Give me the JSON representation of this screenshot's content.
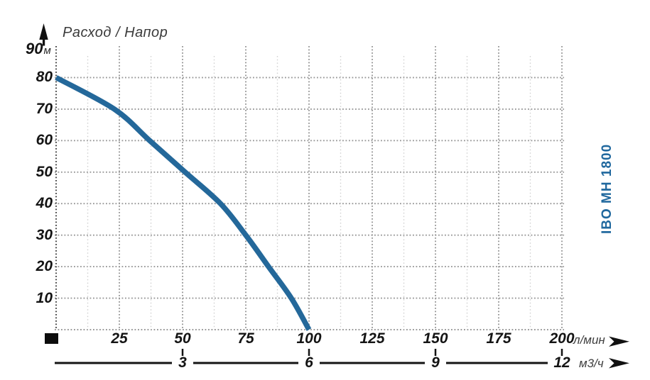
{
  "title": "Расход / Напор",
  "pump_label": "IBO MH 1800",
  "colors": {
    "curve": "#24689a",
    "pump_label": "#20689e",
    "grid_major": "#979797",
    "grid_minor": "#cfcfcf",
    "axis_line": "#4b4b4b",
    "label_text": "#141414",
    "unit_text": "#3f3f3f",
    "marker_black": "#0d0d0d"
  },
  "y_axis": {
    "top_value": "90",
    "unit": "м",
    "ticks": [
      80,
      70,
      60,
      50,
      40,
      30,
      20,
      10
    ],
    "min": 0,
    "max": 90,
    "step": 10
  },
  "x_axis_primary": {
    "unit": "л/мин",
    "ticks": [
      25,
      50,
      75,
      100,
      125,
      150,
      175,
      200
    ],
    "min": 0,
    "max": 200,
    "major_step": 25,
    "minor_step": 12.5
  },
  "x_axis_secondary": {
    "unit": "м3/ч",
    "ticks": [
      3,
      6,
      9,
      12
    ],
    "min": 0,
    "max": 12
  },
  "chart_data": {
    "type": "line",
    "title": "Расход / Напор",
    "xlabel": "л/мин",
    "x2label": "м3/ч",
    "ylabel": "м",
    "xlim": [
      0,
      200
    ],
    "ylim": [
      0,
      90
    ],
    "grid": true,
    "legend_position": "right-vertical",
    "series": [
      {
        "name": "IBO MH 1800",
        "color": "#24689a",
        "points": [
          [
            0,
            80
          ],
          [
            23,
            70
          ],
          [
            37,
            60
          ],
          [
            51,
            50
          ],
          [
            65,
            40
          ],
          [
            75,
            30
          ],
          [
            84,
            20
          ],
          [
            93,
            10
          ],
          [
            100,
            0
          ]
        ]
      }
    ]
  }
}
